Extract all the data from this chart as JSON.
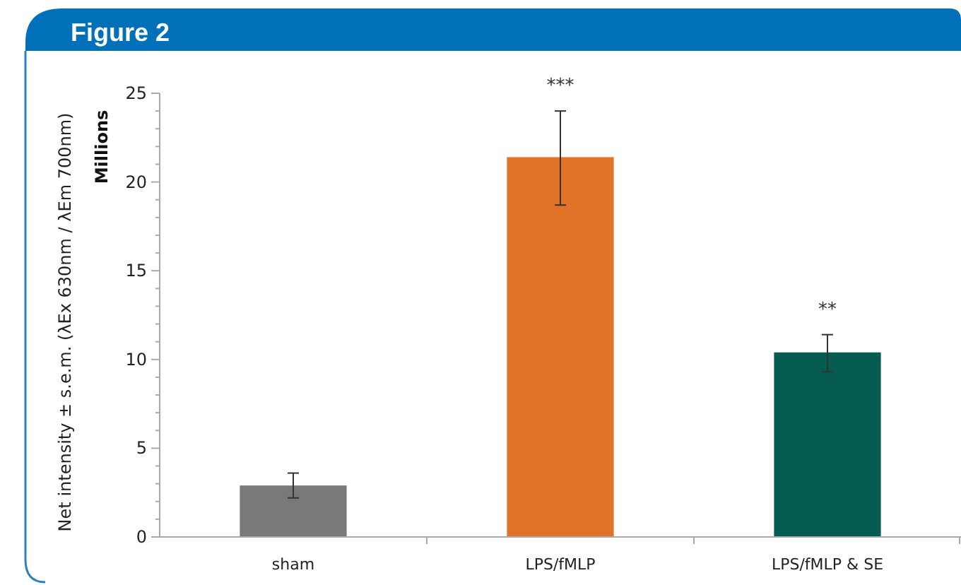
{
  "chart_data": {
    "type": "bar",
    "title": "Figure 2",
    "ylabel": "Net intensity ± s.e.m. (λEx 630nm / λEm 700nm)",
    "categories": [
      "sham",
      "LPS/fMLP",
      "LPS/fMLP & SE"
    ],
    "values": [
      2.9,
      21.4,
      10.4
    ],
    "colors": [
      "#77797b",
      "#e07328",
      "#075c52"
    ],
    "errors": [
      [
        2.2,
        3.6
      ],
      [
        18.7,
        24.0
      ],
      [
        9.3,
        11.4
      ]
    ],
    "ylim": [
      0,
      25
    ],
    "yticks": [
      0,
      {
        "value": 1,
        "label": null
      },
      {
        "value": 2,
        "label": null
      },
      {
        "value": 3,
        "label": null
      },
      {
        "value": 4,
        "label": null
      },
      5,
      {
        "value": 6,
        "label": null
      },
      {
        "value": 7,
        "label": null
      },
      {
        "value": 8,
        "label": null
      },
      {
        "value": 9,
        "label": null
      },
      10,
      {
        "value": 11,
        "label": null
      },
      {
        "value": 12,
        "label": null
      },
      {
        "value": 13,
        "label": null
      },
      {
        "value": 14,
        "label": null
      },
      15,
      {
        "value": 16,
        "label": null
      },
      {
        "value": 17,
        "label": null
      },
      {
        "value": 18,
        "label": null
      },
      {
        "value": 19,
        "label": null
      },
      20,
      {
        "value": 21,
        "label": null
      },
      {
        "value": 22,
        "label": null
      },
      {
        "value": 23,
        "label": null
      },
      {
        "value": 24,
        "label": null
      },
      25
    ],
    "annotations": [
      "Millions",
      {
        "text": "***",
        "x": "LPS/fMLP",
        "y": 24.0
      },
      {
        "text": "**",
        "x": "LPS/fMLP & SE",
        "y": 11.4
      }
    ],
    "grid": false
  }
}
